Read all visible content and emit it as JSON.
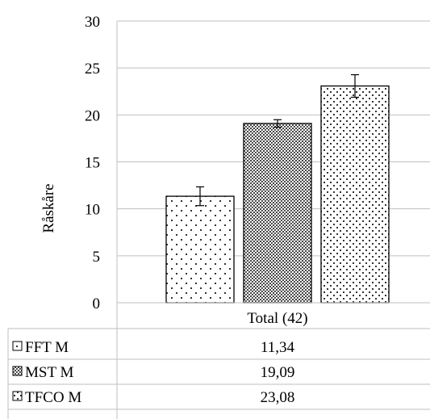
{
  "chart_data": {
    "type": "bar",
    "ylabel": "Råskåre",
    "ylim": [
      0,
      30
    ],
    "yticks": [
      "0",
      "5",
      "10",
      "15",
      "20",
      "25",
      "30"
    ],
    "categories": [
      "Total (42)"
    ],
    "grid": true,
    "series": [
      {
        "name": "FFT M",
        "values": [
          11.34
        ],
        "value_label": "11,34",
        "error": 1.0,
        "pattern": "sparse-dots"
      },
      {
        "name": "MST M",
        "values": [
          19.09
        ],
        "value_label": "19,09",
        "error": 0.4,
        "pattern": "dark-checker"
      },
      {
        "name": "TFCO M",
        "values": [
          23.08
        ],
        "value_label": "23,08",
        "error": 1.2,
        "pattern": "dense-dots"
      }
    ],
    "colors": {
      "border": "#000000",
      "grid": "#bfbfbf",
      "dark": "#555555"
    }
  }
}
